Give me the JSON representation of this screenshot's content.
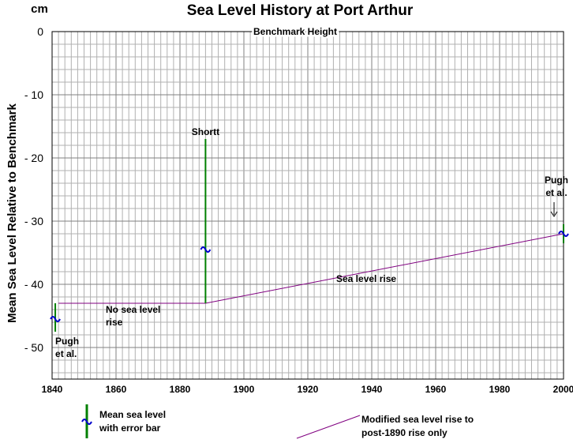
{
  "chart_data": {
    "type": "line",
    "title": "Sea Level History at Port Arthur",
    "unit": "cm",
    "ylabel": "Mean Sea Level Relative to Benchmark",
    "xlabel": "",
    "xlim": [
      1840,
      2000
    ],
    "ylim": [
      -55,
      0
    ],
    "x_ticks": [
      1840,
      1860,
      1880,
      1900,
      1920,
      1940,
      1960,
      1980,
      2000
    ],
    "y_ticks": [
      0,
      -10,
      -20,
      -30,
      -40,
      -50
    ],
    "y_tick_labels": [
      "0",
      "- 10",
      "- 20",
      "- 30",
      "- 40",
      "- 50"
    ],
    "grid": true,
    "benchmark_label": "Benchmark Height",
    "measurements": [
      {
        "label_lines": [
          "Pugh",
          "et al."
        ],
        "x": 1841,
        "y": -45.5,
        "error_low": -47.5,
        "error_high": -43.0
      },
      {
        "label_lines": [
          "Shortt"
        ],
        "x": 1888,
        "y": -34.5,
        "error_low": -43.0,
        "error_high": -17.0
      },
      {
        "label_lines": [
          "Pugh",
          "et al."
        ],
        "x": 2000,
        "y": -32.0,
        "error_low": -33.5,
        "error_high": -30.5
      }
    ],
    "series": [
      {
        "name": "Modified sea level rise to post-1890 rise only",
        "color": "#800080",
        "x": [
          1842,
          1888,
          2000
        ],
        "y": [
          -43.0,
          -43.0,
          -32.0
        ]
      }
    ],
    "annotations": {
      "no_rise": [
        "No sea level",
        "rise"
      ],
      "rise": "Sea level rise"
    },
    "legend": {
      "error_bar": [
        "Mean sea level",
        "with error bar"
      ],
      "line": [
        "Modified sea level rise to",
        "post-1890 rise only"
      ]
    },
    "colors": {
      "error_bar": "#008000",
      "mean_marker": "#0000cc",
      "line": "#800080",
      "grid": "#b0b0b0"
    }
  }
}
